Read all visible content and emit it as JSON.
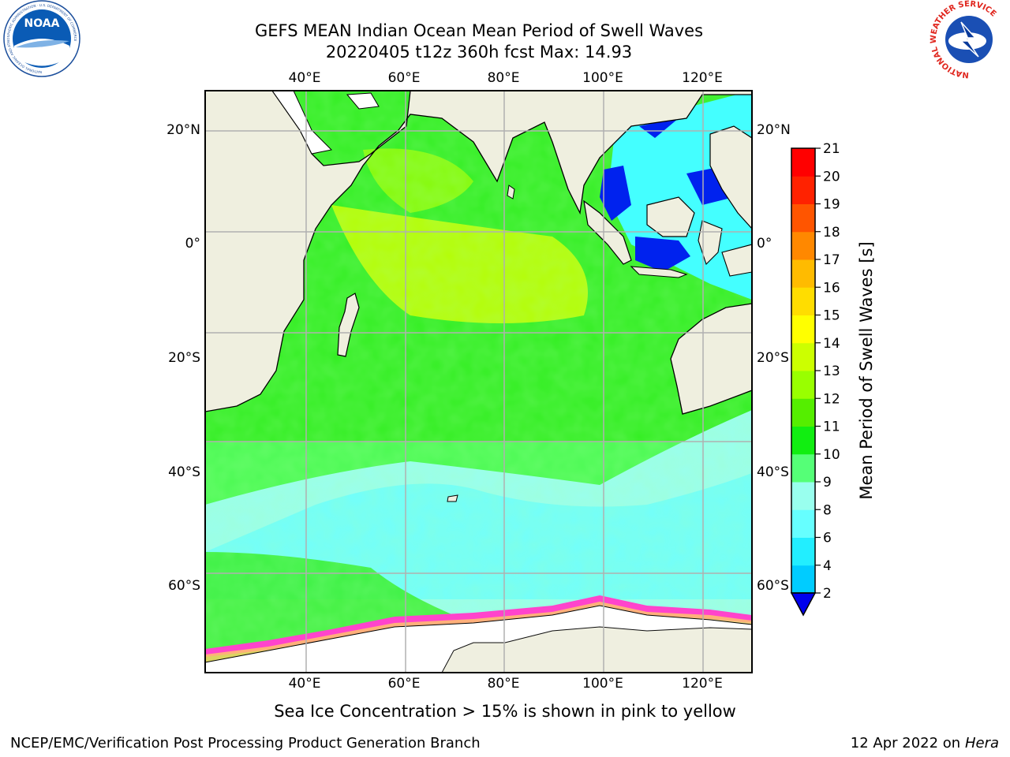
{
  "title": {
    "line1": "GEFS MEAN Indian Ocean Mean Period of Swell Waves",
    "line2": "20220405 t12z 360h fcst   Max: 14.93"
  },
  "map": {
    "lon_range": [
      20,
      130
    ],
    "lat_range": [
      -75,
      27
    ],
    "lon_ticks": [
      {
        "value": 40,
        "label": "40°E"
      },
      {
        "value": 60,
        "label": "60°E"
      },
      {
        "value": 80,
        "label": "80°E"
      },
      {
        "value": 100,
        "label": "100°E"
      },
      {
        "value": 120,
        "label": "120°E"
      }
    ],
    "lat_ticks": [
      {
        "value": 20,
        "label": "20°N"
      },
      {
        "value": 0,
        "label": "0°"
      },
      {
        "value": -20,
        "label": "20°S"
      },
      {
        "value": -40,
        "label": "40°S"
      },
      {
        "value": -60,
        "label": "60°S"
      }
    ],
    "land_color": "#efefdf",
    "ice_color": "#ffffff"
  },
  "colorbar": {
    "label": "Mean Period of Swell Waves [s]",
    "tick_labels": [
      "2",
      "4",
      "6",
      "8",
      "9",
      "10",
      "11",
      "12",
      "13",
      "14",
      "15",
      "16",
      "17",
      "18",
      "19",
      "20",
      "21"
    ],
    "colors": [
      "#0044ff",
      "#00ccff",
      "#22eeff",
      "#66ffff",
      "#99ffee",
      "#55ff77",
      "#11ee11",
      "#55ee00",
      "#99ff00",
      "#ccff00",
      "#ffff00",
      "#ffdd00",
      "#ffbb00",
      "#ff8800",
      "#ff5500",
      "#ff2200",
      "#ff0000"
    ],
    "extend_color": "#0000ee"
  },
  "footnote": "Sea Ice Concentration > 15% is shown in pink to yellow",
  "credit": {
    "left": "NCEP/EMC/Verification Post Processing Product Generation Branch",
    "date": "12 Apr 2022 on",
    "system": "Hera"
  },
  "logos": {
    "noaa": {
      "text": "NOAA",
      "ring": "NATIONAL OCEANIC AND ATMOSPHERIC ADMINISTRATION · U.S. DEPARTMENT OF COMMERCE"
    },
    "nws": {
      "ring": "NATIONAL WEATHER SERVICE"
    }
  }
}
